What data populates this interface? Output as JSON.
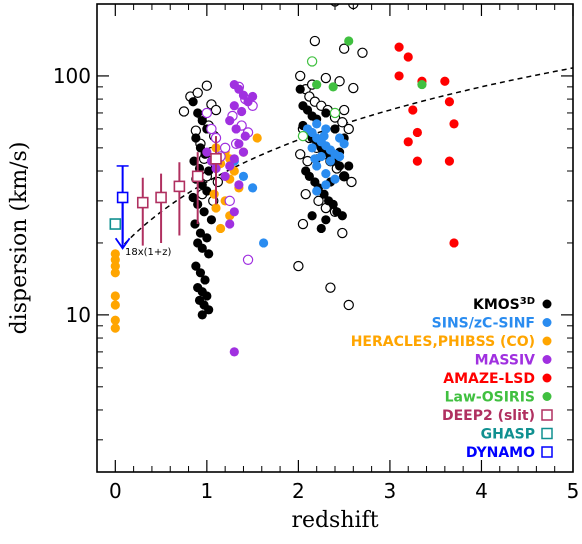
{
  "chart_data": {
    "type": "scatter",
    "xlabel": "redshift",
    "ylabel": "dispersion (km/s)",
    "xlim": [
      -0.2,
      5.0
    ],
    "ylim": [
      2.2,
      200
    ],
    "yscale": "log",
    "grid": false,
    "legend_position": "bottom-right",
    "x_ticks": [
      0,
      1,
      2,
      3,
      4,
      5
    ],
    "y_tick_labels": [
      {
        "value": 10,
        "label": "10"
      },
      {
        "value": 100,
        "label": "100"
      }
    ],
    "annotation": "18x(1+z)",
    "model_curve": {
      "formula": "18*(1+z)",
      "x_range": [
        0.1,
        5.0
      ],
      "style": "dashed"
    },
    "series": [
      {
        "name": "KMOS3D",
        "legend_label": "KMOS",
        "legend_sup": "3D",
        "color": "#000000",
        "marker": "circle",
        "filled_points": [
          [
            0.85,
            78
          ],
          [
            0.9,
            70
          ],
          [
            0.95,
            65
          ],
          [
            1.0,
            60
          ],
          [
            0.88,
            55
          ],
          [
            0.93,
            50
          ],
          [
            0.98,
            47
          ],
          [
            0.86,
            44
          ],
          [
            0.92,
            41
          ],
          [
            1.02,
            40
          ],
          [
            0.88,
            37
          ],
          [
            0.95,
            35
          ],
          [
            1.0,
            33
          ],
          [
            0.85,
            31
          ],
          [
            0.9,
            29
          ],
          [
            0.97,
            27
          ],
          [
            1.05,
            25
          ],
          [
            0.87,
            24
          ],
          [
            0.93,
            22
          ],
          [
            1.0,
            21
          ],
          [
            0.9,
            20
          ],
          [
            0.95,
            19
          ],
          [
            1.02,
            18
          ],
          [
            0.88,
            16
          ],
          [
            0.93,
            15
          ],
          [
            0.98,
            14
          ],
          [
            0.9,
            13
          ],
          [
            0.95,
            12.5
          ],
          [
            1.0,
            12
          ],
          [
            0.92,
            11.5
          ],
          [
            0.97,
            11
          ],
          [
            1.02,
            10.5
          ],
          [
            0.95,
            10
          ],
          [
            2.05,
            62
          ],
          [
            2.1,
            58
          ],
          [
            2.15,
            55
          ],
          [
            2.2,
            52
          ],
          [
            2.25,
            50
          ],
          [
            2.3,
            48
          ],
          [
            2.35,
            46
          ],
          [
            2.4,
            44
          ],
          [
            2.45,
            42
          ],
          [
            2.08,
            40
          ],
          [
            2.12,
            38
          ],
          [
            2.18,
            36
          ],
          [
            2.22,
            34
          ],
          [
            2.28,
            32
          ],
          [
            2.33,
            30
          ],
          [
            2.38,
            29
          ],
          [
            2.42,
            27
          ],
          [
            2.48,
            26
          ],
          [
            2.15,
            26
          ],
          [
            2.3,
            25
          ],
          [
            2.25,
            23
          ],
          [
            2.5,
            38
          ],
          [
            2.55,
            42
          ],
          [
            2.35,
            36
          ],
          [
            2.2,
            45
          ],
          [
            2.45,
            48
          ],
          [
            2.05,
            75
          ],
          [
            2.1,
            72
          ],
          [
            2.15,
            68
          ],
          [
            2.02,
            88
          ],
          [
            2.2,
            66
          ],
          [
            2.3,
            70
          ],
          [
            2.4,
            60
          ],
          [
            2.5,
            55
          ]
        ],
        "open_points": [
          [
            0.75,
            71
          ],
          [
            0.82,
            82
          ],
          [
            0.9,
            85
          ],
          [
            1.0,
            91
          ],
          [
            1.05,
            76
          ],
          [
            1.1,
            72
          ],
          [
            0.95,
            68
          ],
          [
            1.02,
            62
          ],
          [
            0.88,
            59
          ],
          [
            1.08,
            56
          ],
          [
            0.93,
            52
          ],
          [
            1.05,
            48
          ],
          [
            0.97,
            45
          ],
          [
            1.1,
            42
          ],
          [
            1.0,
            38
          ],
          [
            0.95,
            32
          ],
          [
            1.07,
            30
          ],
          [
            1.12,
            36
          ],
          [
            2.02,
            100
          ],
          [
            2.08,
            88
          ],
          [
            2.12,
            82
          ],
          [
            2.18,
            78
          ],
          [
            2.25,
            75
          ],
          [
            2.32,
            72
          ],
          [
            2.4,
            67
          ],
          [
            2.48,
            64
          ],
          [
            2.55,
            60
          ],
          [
            2.3,
            98
          ],
          [
            2.45,
            95
          ],
          [
            2.6,
            89
          ],
          [
            2.15,
            92
          ],
          [
            2.5,
            72
          ],
          [
            2.05,
            60
          ],
          [
            2.12,
            55
          ],
          [
            2.2,
            50
          ],
          [
            2.28,
            47
          ],
          [
            2.35,
            44
          ],
          [
            2.42,
            41
          ],
          [
            2.5,
            38
          ],
          [
            2.58,
            36
          ],
          [
            2.02,
            47
          ],
          [
            2.1,
            44
          ],
          [
            2.08,
            32
          ],
          [
            2.22,
            30
          ],
          [
            2.3,
            28
          ],
          [
            2.4,
            27
          ],
          [
            2.48,
            22
          ],
          [
            2.05,
            24
          ],
          [
            2.0,
            16
          ],
          [
            2.35,
            13
          ],
          [
            2.55,
            11
          ],
          [
            2.4,
            205
          ],
          [
            2.6,
            200
          ],
          [
            2.7,
            125
          ],
          [
            2.5,
            130
          ],
          [
            2.18,
            140
          ]
        ]
      },
      {
        "name": "SINS/zC-SINF",
        "color": "#2a8cf0",
        "marker": "circle",
        "filled_points": [
          [
            2.1,
            60
          ],
          [
            2.15,
            58
          ],
          [
            2.2,
            55
          ],
          [
            2.25,
            53
          ],
          [
            2.3,
            51
          ],
          [
            2.35,
            49
          ],
          [
            2.4,
            47
          ],
          [
            2.2,
            63
          ],
          [
            2.3,
            60
          ],
          [
            2.15,
            50
          ],
          [
            2.25,
            46
          ],
          [
            2.35,
            44
          ],
          [
            2.2,
            42
          ],
          [
            2.3,
            39
          ],
          [
            2.4,
            37
          ],
          [
            2.45,
            55
          ],
          [
            2.5,
            52
          ],
          [
            2.28,
            56
          ],
          [
            2.18,
            45
          ],
          [
            2.3,
            35
          ],
          [
            2.2,
            33
          ],
          [
            2.45,
            46
          ],
          [
            1.4,
            38
          ],
          [
            1.5,
            34
          ],
          [
            1.3,
            44
          ],
          [
            1.62,
            20
          ]
        ]
      },
      {
        "name": "HERACLES,PHIBSS (CO)",
        "color": "#ffa500",
        "marker": "circle",
        "filled_points": [
          [
            0.0,
            18
          ],
          [
            0.0,
            17
          ],
          [
            0.0,
            16
          ],
          [
            0.0,
            15
          ],
          [
            0.0,
            12
          ],
          [
            0.0,
            11
          ],
          [
            0.0,
            9.5
          ],
          [
            0.0,
            8.8
          ],
          [
            1.1,
            50
          ],
          [
            1.2,
            48
          ],
          [
            1.25,
            45
          ],
          [
            1.15,
            43
          ],
          [
            1.3,
            40
          ],
          [
            1.25,
            37
          ],
          [
            1.35,
            34
          ],
          [
            1.2,
            30
          ],
          [
            1.1,
            28
          ],
          [
            1.25,
            26
          ],
          [
            1.15,
            23
          ],
          [
            1.4,
            48
          ],
          [
            1.55,
            55
          ],
          [
            1.08,
            32
          ]
        ]
      },
      {
        "name": "MASSIV",
        "color": "#a030e0",
        "marker": "circle",
        "filled_points": [
          [
            1.3,
            92
          ],
          [
            1.35,
            88
          ],
          [
            1.4,
            83
          ],
          [
            1.45,
            78
          ],
          [
            1.5,
            82
          ],
          [
            1.3,
            75
          ],
          [
            1.38,
            71
          ],
          [
            1.25,
            65
          ],
          [
            1.32,
            60
          ],
          [
            1.42,
            56
          ],
          [
            1.35,
            52
          ],
          [
            1.4,
            48
          ],
          [
            1.3,
            45
          ],
          [
            1.25,
            42
          ],
          [
            1.2,
            38
          ],
          [
            1.35,
            35
          ],
          [
            1.0,
            48
          ],
          [
            1.05,
            44
          ],
          [
            1.1,
            41
          ],
          [
            1.3,
            27
          ],
          [
            1.25,
            24
          ],
          [
            1.3,
            7
          ]
        ],
        "open_points": [
          [
            1.35,
            90
          ],
          [
            1.42,
            80
          ],
          [
            1.5,
            75
          ],
          [
            1.28,
            68
          ],
          [
            1.38,
            62
          ],
          [
            1.45,
            58
          ],
          [
            1.32,
            52
          ],
          [
            1.2,
            50
          ],
          [
            1.15,
            46
          ],
          [
            1.1,
            55
          ],
          [
            1.25,
            30
          ],
          [
            1.45,
            17
          ],
          [
            1.05,
            60
          ],
          [
            1.0,
            70
          ]
        ]
      },
      {
        "name": "AMAZE-LSD",
        "color": "#ff0000",
        "marker": "circle",
        "filled_points": [
          [
            3.1,
            132
          ],
          [
            3.2,
            120
          ],
          [
            3.35,
            95
          ],
          [
            3.1,
            100
          ],
          [
            3.25,
            72
          ],
          [
            3.3,
            58
          ],
          [
            3.2,
            53
          ],
          [
            3.6,
            95
          ],
          [
            3.65,
            78
          ],
          [
            3.7,
            63
          ],
          [
            3.3,
            44
          ],
          [
            3.65,
            44
          ],
          [
            3.7,
            20
          ]
        ]
      },
      {
        "name": "Law-OSIRIS",
        "color": "#40c040",
        "marker": "circle",
        "filled_points": [
          [
            2.55,
            140
          ],
          [
            2.38,
            90
          ],
          [
            2.2,
            92
          ],
          [
            3.35,
            92
          ]
        ],
        "open_points": [
          [
            2.15,
            115
          ],
          [
            2.05,
            56
          ],
          [
            2.4,
            70
          ]
        ]
      },
      {
        "name": "DEEP2 (slit)",
        "color": "#b03060",
        "marker": "square",
        "open_points": [
          [
            0.3,
            29.5
          ],
          [
            0.5,
            31
          ],
          [
            0.7,
            34.5
          ],
          [
            0.9,
            38
          ],
          [
            1.1,
            45
          ]
        ],
        "errors": [
          [
            10,
            8
          ],
          [
            11,
            8
          ],
          [
            13,
            9
          ],
          [
            14,
            10
          ],
          [
            16,
            11
          ]
        ]
      },
      {
        "name": "GHASP",
        "color": "#109090",
        "marker": "square",
        "open_points": [
          [
            0.0,
            24
          ]
        ],
        "errors": [
          [
            0,
            0
          ]
        ]
      },
      {
        "name": "DYNAMO",
        "color": "#0000ff",
        "marker": "square",
        "open_points": [
          [
            0.08,
            31
          ]
        ],
        "errors": [
          [
            11,
            11
          ]
        ],
        "arrow_to": 19
      }
    ]
  }
}
